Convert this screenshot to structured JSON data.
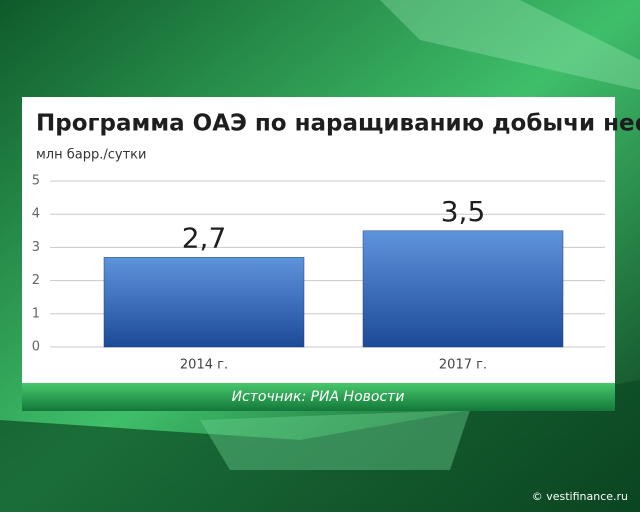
{
  "chart_data": {
    "type": "bar",
    "title": "Программа ОАЭ по наращиванию добычи нефти",
    "subtitle": "млн барр./сутки",
    "categories": [
      "2014 г.",
      "2017 г."
    ],
    "values": [
      2.7,
      3.5
    ],
    "value_labels": [
      "2,7",
      "3,5"
    ],
    "color": "#2f62b3",
    "ylim": [
      0,
      5
    ],
    "yticks": [
      0,
      1,
      2,
      3,
      4,
      5
    ],
    "grid": true,
    "source": "Источник: РИА Новости"
  },
  "watermark": "© vestifinance.ru"
}
